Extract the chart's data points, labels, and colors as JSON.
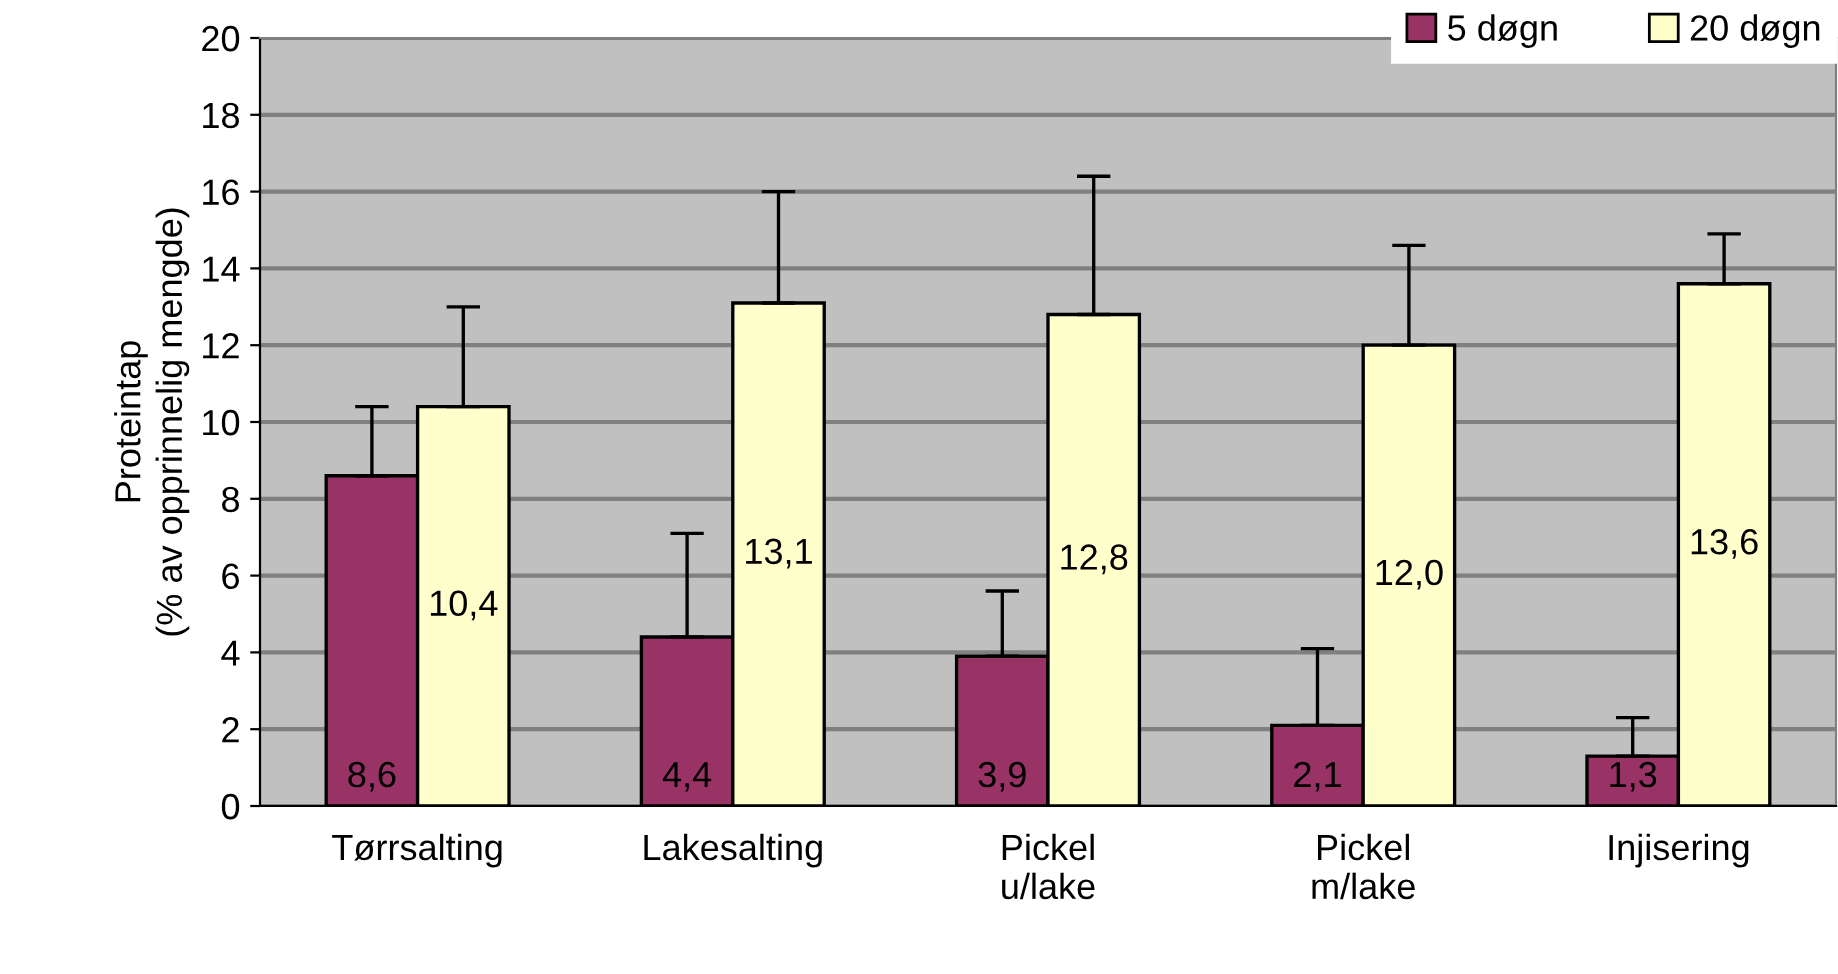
{
  "chart_data": {
    "type": "bar",
    "ylabel": "Proteintap\n(% av opprinnelig mengde)",
    "categories": [
      "Tørrsalting",
      "Lakesalting",
      "Pickel\nu/lake",
      "Pickel\nm/lake",
      "Injisering"
    ],
    "series": [
      {
        "name": "5 døgn",
        "color": "#993366",
        "values": [
          8.6,
          4.4,
          3.9,
          2.1,
          1.3
        ],
        "errors": [
          [
            8.6,
            10.4
          ],
          [
            4.4,
            7.1
          ],
          [
            3.9,
            5.6
          ],
          [
            2.1,
            4.1
          ],
          [
            1.3,
            2.3
          ]
        ],
        "value_labels": [
          "8,6",
          "4,4",
          "3,9",
          "2,1",
          "1,3"
        ]
      },
      {
        "name": "20 døgn",
        "color": "#ffffcc",
        "values": [
          10.4,
          13.1,
          12.8,
          12.0,
          13.6
        ],
        "errors": [
          [
            10.4,
            13.0
          ],
          [
            13.1,
            16.0
          ],
          [
            12.8,
            16.4
          ],
          [
            12.0,
            14.6
          ],
          [
            13.6,
            14.9
          ]
        ],
        "value_labels": [
          "10,4",
          "13,1",
          "12,8",
          "12,0",
          "13,6"
        ]
      }
    ],
    "ylim": [
      0,
      20
    ],
    "yticks": [
      0,
      2,
      4,
      6,
      8,
      10,
      12,
      14,
      16,
      18,
      20
    ],
    "grid": "y",
    "legend": "top right"
  }
}
